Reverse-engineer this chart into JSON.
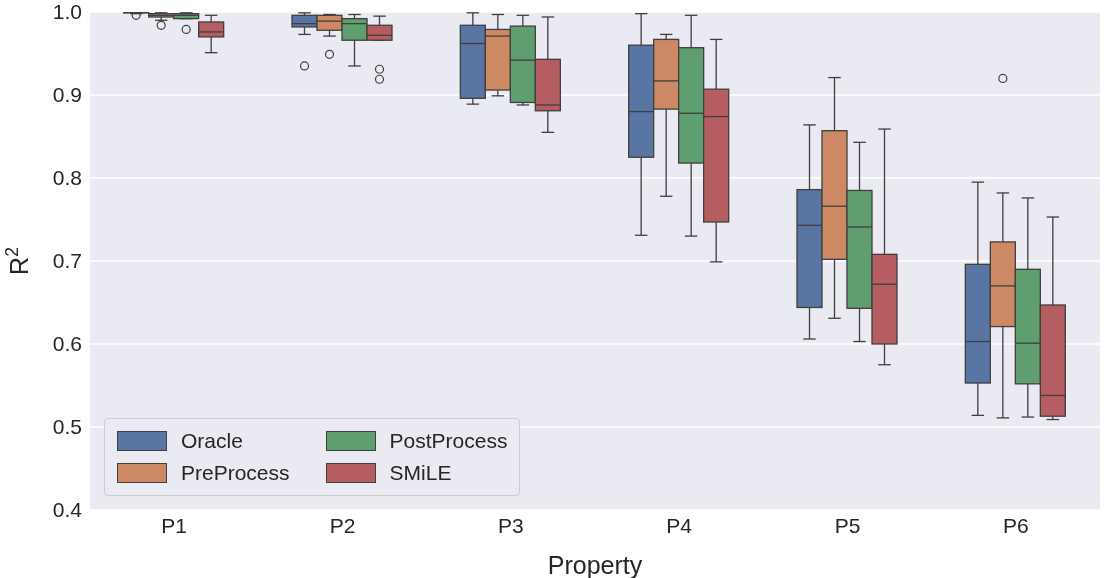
{
  "chart_data": {
    "type": "box",
    "xlabel": "Property",
    "ylabel": "R$^{2}$",
    "categories": [
      "P1",
      "P2",
      "P3",
      "P4",
      "P5",
      "P6"
    ],
    "ylim": [
      0.4,
      1.0
    ],
    "yticks": [
      0.4,
      0.5,
      0.6,
      0.7,
      0.8,
      0.9,
      {
        "value": 1.0,
        "label": "1.0"
      }
    ],
    "grid": "y",
    "legend": "bottom left",
    "series": [
      {
        "name": "Oracle",
        "color": "#5975a4",
        "boxes": [
          {
            "low": 0.998,
            "q1": 0.999,
            "median": 1.0,
            "q3": 1.0,
            "high": 1.0,
            "outliers": [
              0.996
            ]
          },
          {
            "low": 0.973,
            "q1": 0.982,
            "median": 0.986,
            "q3": 0.996,
            "high": 0.999,
            "outliers": [
              0.935
            ]
          },
          {
            "low": 0.889,
            "q1": 0.896,
            "median": 0.962,
            "q3": 0.984,
            "high": 0.999
          },
          {
            "low": 0.731,
            "q1": 0.825,
            "median": 0.88,
            "q3": 0.96,
            "high": 0.998
          },
          {
            "low": 0.606,
            "q1": 0.644,
            "median": 0.743,
            "q3": 0.786,
            "high": 0.864
          },
          {
            "low": 0.514,
            "q1": 0.553,
            "median": 0.603,
            "q3": 0.696,
            "high": 0.795
          }
        ]
      },
      {
        "name": "PreProcess",
        "color": "#cc8963",
        "boxes": [
          {
            "low": 0.99,
            "q1": 0.994,
            "median": 0.996,
            "q3": 0.998,
            "high": 0.999,
            "outliers": [
              0.984
            ]
          },
          {
            "low": 0.971,
            "q1": 0.978,
            "median": 0.989,
            "q3": 0.996,
            "high": 0.997,
            "outliers": [
              0.949
            ]
          },
          {
            "low": 0.899,
            "q1": 0.906,
            "median": 0.971,
            "q3": 0.979,
            "high": 0.997
          },
          {
            "low": 0.778,
            "q1": 0.883,
            "median": 0.917,
            "q3": 0.967,
            "high": 0.973
          },
          {
            "low": 0.631,
            "q1": 0.702,
            "median": 0.766,
            "q3": 0.857,
            "high": 0.921
          },
          {
            "low": 0.511,
            "q1": 0.621,
            "median": 0.67,
            "q3": 0.723,
            "high": 0.782,
            "outliers": [
              0.92
            ]
          }
        ]
      },
      {
        "name": "PostProcess",
        "color": "#5f9e6e",
        "boxes": [
          {
            "low": 0.992,
            "q1": 0.992,
            "median": 0.996,
            "q3": 0.998,
            "high": 0.999,
            "outliers": [
              0.979
            ]
          },
          {
            "low": 0.935,
            "q1": 0.966,
            "median": 0.986,
            "q3": 0.992,
            "high": 0.997
          },
          {
            "low": 0.888,
            "q1": 0.891,
            "median": 0.942,
            "q3": 0.983,
            "high": 0.996
          },
          {
            "low": 0.73,
            "q1": 0.818,
            "median": 0.878,
            "q3": 0.957,
            "high": 0.996
          },
          {
            "low": 0.603,
            "q1": 0.643,
            "median": 0.741,
            "q3": 0.785,
            "high": 0.843
          },
          {
            "low": 0.512,
            "q1": 0.552,
            "median": 0.601,
            "q3": 0.69,
            "high": 0.776
          }
        ]
      },
      {
        "name": "SMiLE",
        "color": "#b55d60",
        "boxes": [
          {
            "low": 0.951,
            "q1": 0.97,
            "median": 0.976,
            "q3": 0.988,
            "high": 0.996
          },
          {
            "low": 0.966,
            "q1": 0.966,
            "median": 0.972,
            "q3": 0.984,
            "high": 0.995,
            "outliers": [
              0.931,
              0.919
            ]
          },
          {
            "low": 0.855,
            "q1": 0.881,
            "median": 0.888,
            "q3": 0.943,
            "high": 0.994
          },
          {
            "low": 0.699,
            "q1": 0.747,
            "median": 0.874,
            "q3": 0.907,
            "high": 0.967
          },
          {
            "low": 0.575,
            "q1": 0.6,
            "median": 0.672,
            "q3": 0.708,
            "high": 0.859
          },
          {
            "low": 0.509,
            "q1": 0.513,
            "median": 0.538,
            "q3": 0.647,
            "high": 0.753
          }
        ]
      }
    ]
  }
}
